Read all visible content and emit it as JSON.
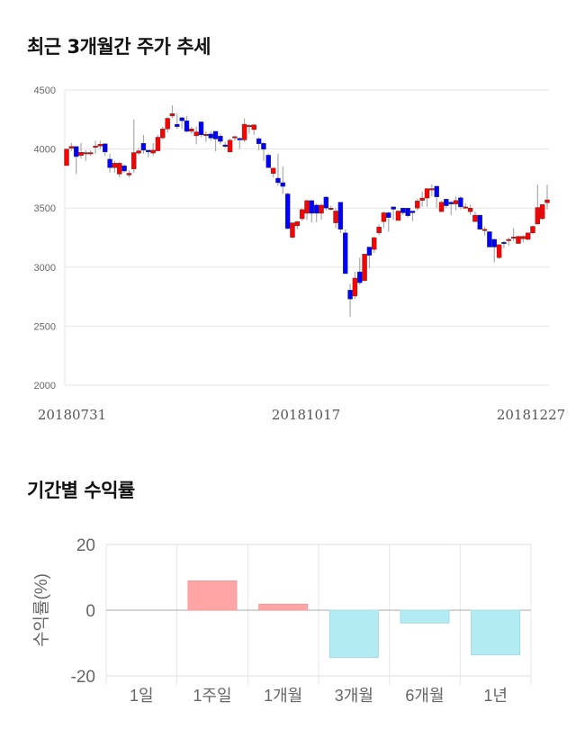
{
  "titles": {
    "price_trend": "최근 3개월간 주가 추세",
    "period_return": "기간별 수익률"
  },
  "colors": {
    "up": "#ff0000",
    "down": "#0000ff",
    "positive_bar": "#ffa5a5",
    "negative_bar": "#b2ebf2"
  },
  "chart_data": [
    {
      "type": "candlestick",
      "title": "최근 3개월간 주가 추세",
      "ylim": [
        2000,
        4500
      ],
      "y_ticks": [
        2000,
        2500,
        3000,
        3500,
        4000,
        4500
      ],
      "x_tick_labels": [
        "20180731",
        "20181017",
        "20181227"
      ],
      "grid": true,
      "candles_ohlc": [
        [
          3860,
          4000,
          3860,
          4000
        ],
        [
          4007,
          4052,
          3982,
          4022
        ],
        [
          4022,
          4022,
          3790,
          3936
        ],
        [
          3946,
          4052,
          3920,
          3972
        ],
        [
          3970,
          3990,
          3900,
          3970
        ],
        [
          3970,
          3990,
          3940,
          3970
        ],
        [
          4020,
          4070,
          3960,
          4025
        ],
        [
          4025,
          4070,
          4000,
          4040
        ],
        [
          4045,
          4045,
          3940,
          3975
        ],
        [
          3914,
          3960,
          3800,
          3842
        ],
        [
          3842,
          3900,
          3800,
          3880
        ],
        [
          3788,
          3890,
          3760,
          3880
        ],
        [
          3858,
          3870,
          3800,
          3814
        ],
        [
          3780,
          3820,
          3760,
          3795
        ],
        [
          3832,
          4250,
          3800,
          3970
        ],
        [
          3966,
          4010,
          3950,
          3985
        ],
        [
          4048,
          4120,
          3960,
          3990
        ],
        [
          3990,
          3990,
          3930,
          3975
        ],
        [
          3966,
          4050,
          3940,
          3990
        ],
        [
          3985,
          4120,
          3980,
          4100
        ],
        [
          4095,
          4190,
          4080,
          4170
        ],
        [
          4170,
          4270,
          4140,
          4260
        ],
        [
          4280,
          4370,
          4260,
          4300
        ],
        [
          4210,
          4300,
          4170,
          4190
        ],
        [
          4265,
          4270,
          4170,
          4240
        ],
        [
          4240,
          4280,
          4140,
          4150
        ],
        [
          4150,
          4190,
          4130,
          4170
        ],
        [
          4112,
          4190,
          4040,
          4145
        ],
        [
          4230,
          4230,
          4100,
          4120
        ],
        [
          4125,
          4150,
          4060,
          4125
        ],
        [
          4127,
          4150,
          4070,
          4093
        ],
        [
          4150,
          4150,
          3980,
          4085
        ],
        [
          4110,
          4130,
          4040,
          4065
        ],
        [
          4035,
          4060,
          4010,
          4022
        ],
        [
          3975,
          4090,
          3970,
          4075
        ],
        [
          4105,
          4110,
          4070,
          4105
        ],
        [
          4090,
          4100,
          4000,
          4077
        ],
        [
          4077,
          4260,
          4060,
          4210
        ],
        [
          4200,
          4210,
          4130,
          4200
        ],
        [
          4165,
          4210,
          4120,
          4205
        ],
        [
          4088,
          4100,
          3990,
          4045
        ],
        [
          4048,
          4060,
          3900,
          3998
        ],
        [
          3948,
          3960,
          3840,
          3842
        ],
        [
          3793,
          3840,
          3760,
          3838
        ],
        [
          3753,
          3960,
          3690,
          3715
        ],
        [
          3715,
          3850,
          3620,
          3684
        ],
        [
          3620,
          3630,
          3320,
          3327
        ],
        [
          3252,
          3380,
          3240,
          3375
        ],
        [
          3350,
          3390,
          3320,
          3385
        ],
        [
          3410,
          3500,
          3390,
          3487
        ],
        [
          3456,
          3570,
          3400,
          3563
        ],
        [
          3563,
          3570,
          3380,
          3456
        ],
        [
          3525,
          3540,
          3380,
          3456
        ],
        [
          3456,
          3540,
          3400,
          3525
        ],
        [
          3593,
          3600,
          3480,
          3500
        ],
        [
          3500,
          3520,
          3480,
          3500
        ],
        [
          3375,
          3500,
          3330,
          3475
        ],
        [
          3550,
          3550,
          3290,
          3320
        ],
        [
          3290,
          3320,
          2945,
          2945
        ],
        [
          2805,
          2860,
          2580,
          2730
        ],
        [
          2755,
          2960,
          2730,
          2907
        ],
        [
          2960,
          3080,
          2850,
          2868
        ],
        [
          2885,
          3110,
          2880,
          3110
        ],
        [
          3170,
          3170,
          2990,
          3100
        ],
        [
          3150,
          3255,
          3120,
          3250
        ],
        [
          3290,
          3360,
          3270,
          3340
        ],
        [
          3385,
          3470,
          3330,
          3460
        ],
        [
          3460,
          3470,
          3300,
          3420
        ],
        [
          3510,
          3510,
          3400,
          3490
        ],
        [
          3395,
          3480,
          3395,
          3475
        ],
        [
          3500,
          3500,
          3440,
          3460
        ],
        [
          3500,
          3500,
          3420,
          3435
        ],
        [
          3475,
          3475,
          3390,
          3460
        ],
        [
          3500,
          3580,
          3480,
          3560
        ],
        [
          3565,
          3640,
          3510,
          3585
        ],
        [
          3585,
          3665,
          3510,
          3665
        ],
        [
          3665,
          3700,
          3600,
          3665
        ],
        [
          3685,
          3685,
          3500,
          3595
        ],
        [
          3470,
          3560,
          3470,
          3550
        ],
        [
          3575,
          3580,
          3500,
          3520
        ],
        [
          3550,
          3560,
          3440,
          3535
        ],
        [
          3535,
          3600,
          3480,
          3565
        ],
        [
          3587,
          3600,
          3490,
          3510
        ],
        [
          3510,
          3540,
          3490,
          3510
        ],
        [
          3470,
          3530,
          3440,
          3500
        ],
        [
          3385,
          3470,
          3390,
          3440
        ],
        [
          3440,
          3440,
          3320,
          3320
        ],
        [
          3320,
          3340,
          3270,
          3320
        ],
        [
          3300,
          3300,
          3170,
          3170
        ],
        [
          3235,
          3240,
          3040,
          3170
        ],
        [
          3080,
          3190,
          3070,
          3190
        ],
        [
          3210,
          3220,
          3160,
          3200
        ],
        [
          3235,
          3250,
          3180,
          3235
        ],
        [
          3255,
          3330,
          3220,
          3255
        ],
        [
          3200,
          3265,
          3200,
          3260
        ],
        [
          3240,
          3270,
          3210,
          3260
        ],
        [
          3235,
          3290,
          3225,
          3290
        ],
        [
          3290,
          3350,
          3280,
          3345
        ],
        [
          3365,
          3700,
          3360,
          3505
        ],
        [
          3410,
          3530,
          3400,
          3530
        ],
        [
          3545,
          3700,
          3490,
          3570
        ]
      ]
    },
    {
      "type": "bar",
      "title": "기간별 수익률",
      "categories": [
        "1일",
        "1주일",
        "1개월",
        "3개월",
        "6개월",
        "1년"
      ],
      "values": [
        0,
        8.9,
        1.8,
        -14.4,
        -3.9,
        -13.6
      ],
      "ylabel": "수익률(%)",
      "ylim": [
        -20,
        20
      ],
      "y_ticks": [
        -20,
        0,
        20
      ],
      "grid": true
    }
  ]
}
